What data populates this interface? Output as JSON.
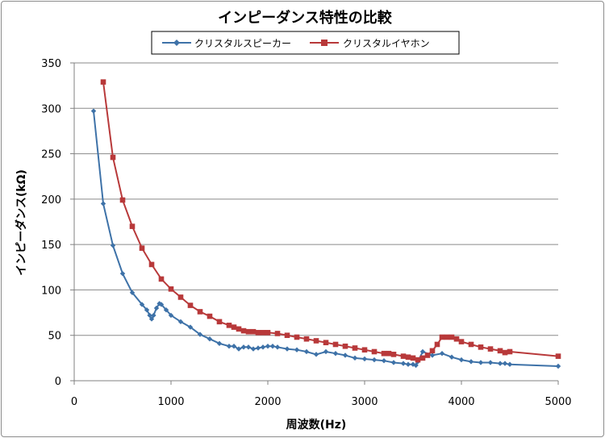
{
  "chart_data": {
    "type": "line",
    "title": "インピーダンス特性の比較",
    "xlabel": "周波数(Hz)",
    "ylabel": "インピーダンス(kΩ)",
    "xlim": [
      0,
      5000
    ],
    "ylim": [
      0,
      350
    ],
    "xticks": [
      "0",
      "1000",
      "2000",
      "3000",
      "4000",
      "5000"
    ],
    "yticks": [
      "0",
      "50",
      "100",
      "150",
      "200",
      "250",
      "300",
      "350"
    ],
    "grid": "horizontal",
    "legend_position": "top",
    "series": [
      {
        "name": "クリスタルスピーカー",
        "color": "#3e72a8",
        "marker": "diamond",
        "points": [
          [
            200,
            297
          ],
          [
            300,
            195
          ],
          [
            400,
            149
          ],
          [
            500,
            118
          ],
          [
            600,
            97
          ],
          [
            700,
            84
          ],
          [
            750,
            78
          ],
          [
            780,
            72
          ],
          [
            800,
            68
          ],
          [
            820,
            72
          ],
          [
            850,
            80
          ],
          [
            880,
            85
          ],
          [
            900,
            84
          ],
          [
            950,
            78
          ],
          [
            1000,
            72
          ],
          [
            1100,
            65
          ],
          [
            1200,
            59
          ],
          [
            1300,
            51
          ],
          [
            1400,
            46
          ],
          [
            1500,
            41
          ],
          [
            1600,
            38
          ],
          [
            1650,
            38
          ],
          [
            1700,
            35
          ],
          [
            1750,
            37
          ],
          [
            1800,
            37
          ],
          [
            1850,
            35
          ],
          [
            1900,
            36
          ],
          [
            1950,
            37
          ],
          [
            2000,
            38
          ],
          [
            2050,
            38
          ],
          [
            2100,
            37
          ],
          [
            2200,
            35
          ],
          [
            2300,
            34
          ],
          [
            2400,
            32
          ],
          [
            2500,
            29
          ],
          [
            2600,
            32
          ],
          [
            2700,
            30
          ],
          [
            2800,
            28
          ],
          [
            2900,
            25
          ],
          [
            3000,
            24
          ],
          [
            3100,
            23
          ],
          [
            3200,
            22
          ],
          [
            3300,
            20
          ],
          [
            3400,
            19
          ],
          [
            3450,
            18
          ],
          [
            3500,
            18
          ],
          [
            3530,
            17
          ],
          [
            3550,
            21
          ],
          [
            3600,
            32
          ],
          [
            3700,
            28
          ],
          [
            3800,
            30
          ],
          [
            3900,
            26
          ],
          [
            4000,
            23
          ],
          [
            4100,
            21
          ],
          [
            4200,
            20
          ],
          [
            4300,
            20
          ],
          [
            4400,
            19
          ],
          [
            4450,
            19
          ],
          [
            4500,
            18
          ],
          [
            5000,
            16
          ]
        ]
      },
      {
        "name": "クリスタルイヤホン",
        "color": "#b8393a",
        "marker": "square",
        "points": [
          [
            300,
            329
          ],
          [
            400,
            246
          ],
          [
            500,
            199
          ],
          [
            600,
            170
          ],
          [
            700,
            146
          ],
          [
            800,
            128
          ],
          [
            900,
            112
          ],
          [
            1000,
            101
          ],
          [
            1100,
            92
          ],
          [
            1200,
            83
          ],
          [
            1300,
            76
          ],
          [
            1400,
            71
          ],
          [
            1500,
            65
          ],
          [
            1600,
            61
          ],
          [
            1650,
            59
          ],
          [
            1700,
            57
          ],
          [
            1750,
            55
          ],
          [
            1800,
            54
          ],
          [
            1850,
            54
          ],
          [
            1900,
            53
          ],
          [
            1950,
            53
          ],
          [
            2000,
            53
          ],
          [
            2100,
            52
          ],
          [
            2200,
            50
          ],
          [
            2300,
            48
          ],
          [
            2400,
            46
          ],
          [
            2500,
            44
          ],
          [
            2600,
            42
          ],
          [
            2700,
            40
          ],
          [
            2800,
            38
          ],
          [
            2900,
            36
          ],
          [
            3000,
            34
          ],
          [
            3100,
            32
          ],
          [
            3200,
            30
          ],
          [
            3250,
            30
          ],
          [
            3300,
            29
          ],
          [
            3400,
            27
          ],
          [
            3450,
            26
          ],
          [
            3500,
            25
          ],
          [
            3550,
            23
          ],
          [
            3600,
            25
          ],
          [
            3650,
            28
          ],
          [
            3700,
            33
          ],
          [
            3750,
            40
          ],
          [
            3800,
            48
          ],
          [
            3850,
            48
          ],
          [
            3900,
            48
          ],
          [
            3950,
            46
          ],
          [
            4000,
            43
          ],
          [
            4100,
            40
          ],
          [
            4200,
            37
          ],
          [
            4300,
            35
          ],
          [
            4400,
            33
          ],
          [
            4450,
            31
          ],
          [
            4500,
            32
          ],
          [
            5000,
            27
          ]
        ]
      }
    ]
  }
}
